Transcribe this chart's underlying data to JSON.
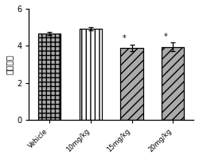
{
  "categories": [
    "Vehicle",
    "10mg/kg",
    "15mg/kg",
    "20mg/kg"
  ],
  "values": [
    4.67,
    4.92,
    3.9,
    3.95
  ],
  "errors": [
    0.08,
    0.07,
    0.18,
    0.22
  ],
  "ylabel": "发作级别",
  "ylim": [
    0,
    6
  ],
  "yticks": [
    0,
    2,
    4,
    6
  ],
  "bar_width": 0.55,
  "background_color": "#ffffff",
  "bar_edge_color": "#000000",
  "hatches": [
    "+++",
    "|||",
    "///",
    "///"
  ],
  "significant": [
    false,
    false,
    true,
    true
  ],
  "star_label": "*",
  "bar_face_colors": [
    "#aaaaaa",
    "#ffffff",
    "#aaaaaa",
    "#aaaaaa"
  ],
  "hatch_colors": [
    "#000000",
    "#000000",
    "#000000",
    "#000000"
  ]
}
